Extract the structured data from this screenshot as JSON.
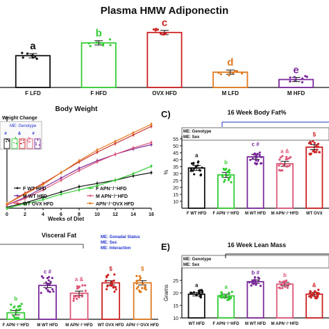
{
  "figure": {
    "title": "Plasma HMW Adiponectin"
  },
  "chart_data": [
    {
      "type": "bar",
      "panel": "",
      "title": "Plasma HMW Adiponectin",
      "categories": [
        "F LFD",
        "F HFD",
        "OVX HFD",
        "M LFD",
        "M HFD"
      ],
      "values": [
        0.52,
        0.73,
        0.9,
        0.25,
        0.13
      ],
      "letters": [
        "a",
        "b",
        "c",
        "d",
        "e"
      ],
      "colors": [
        "#111111",
        "#33cc33",
        "#cc2222",
        "#e07a1f",
        "#7a2a9a"
      ],
      "ylim": [
        0,
        1
      ]
    },
    {
      "type": "line",
      "panel": "",
      "title": "Body Weight",
      "inset_title": "Weight Change",
      "inset_label": "ME: Genotype",
      "inset_marks": [
        "#",
        "&",
        "#"
      ],
      "xlabel": "Weeks of Diet",
      "x_ticks": [
        "0",
        "2",
        "4",
        "6",
        "8",
        "10",
        "12",
        "14",
        "16"
      ],
      "series": [
        {
          "name": "F WT HFD",
          "color": "#111111",
          "values": [
            0.1,
            0.5,
            1,
            1.5,
            2,
            2.3,
            2.6,
            3,
            3.3
          ]
        },
        {
          "name": "F APN⁻/⁻HFD",
          "color": "#33cc33",
          "values": [
            0,
            0.4,
            0.8,
            1.3,
            1.7,
            2.1,
            2.6,
            3.2,
            3.9
          ]
        },
        {
          "name": "M WT HFD",
          "color": "#7a2a9a",
          "values": [
            0.3,
            1,
            1.9,
            2.8,
            3.7,
            4.4,
            5,
            5.5,
            5.9
          ]
        },
        {
          "name": "M APN⁻/⁻HFD",
          "color": "#dd5577",
          "values": [
            0.3,
            0.9,
            1.7,
            2.6,
            3.5,
            4.3,
            5,
            5.6,
            6.1
          ]
        },
        {
          "name": "WT OVX HFD",
          "color": "#cc3333",
          "values": [
            0.4,
            1.4,
            2.3,
            3.3,
            4.3,
            5.2,
            6,
            6.8,
            7.6
          ]
        },
        {
          "name": "APN⁻/⁻OVX HFD",
          "color": "#e07a1f",
          "values": [
            0.4,
            1.3,
            2.2,
            3.3,
            4.4,
            5.4,
            6.2,
            7,
            7.8
          ]
        }
      ],
      "ylim": [
        0,
        8.5
      ]
    },
    {
      "type": "bar",
      "panel": "C)",
      "title": "16 Week Body Fat%",
      "bracket_label": "ME: Genotype\nME: Sex",
      "ylabel": "%",
      "y_ticks": [
        "10",
        "15",
        "20",
        "25",
        "30",
        "35",
        "40",
        "45",
        "50",
        "55"
      ],
      "categories": [
        "F WT HFD",
        "F APN⁻/⁻HFD",
        "M WT HFD",
        "M APN⁻/⁻HFD",
        "WT OVX"
      ],
      "values": [
        34,
        29,
        42,
        37,
        49
      ],
      "letters": [
        "a",
        "b",
        "c #",
        "a &",
        "$"
      ],
      "colors": [
        "#111111",
        "#33cc33",
        "#7a2a9a",
        "#dd5577",
        "#cc2222"
      ],
      "ylim": [
        5,
        57
      ]
    },
    {
      "type": "bar",
      "panel": "",
      "title": "Visceral Fat",
      "bracket_label": "ME: Gonadal Status\nME: Sex\nME: Interaction",
      "categories": [
        "F APN⁻/⁻HFD",
        "M WT HFD",
        "M APN⁻/⁻HFD",
        "WT OVX HFD",
        "APN⁻/⁻OVX HFD"
      ],
      "values": [
        0.25,
        1.3,
        1,
        1.4,
        1.4
      ],
      "letters": [
        "b",
        "c #",
        "a &",
        "$",
        "$"
      ],
      "colors": [
        "#33cc33",
        "#7a2a9a",
        "#dd5577",
        "#cc2222",
        "#e07a1f"
      ],
      "ylim": [
        0,
        2.4
      ]
    },
    {
      "type": "bar",
      "panel": "E)",
      "title": "16 Week Lean Mass",
      "bracket_label": "ME: Genotype\nME: Sex",
      "ylabel": "Grams",
      "y_ticks": [
        "10",
        "15",
        "20",
        "25"
      ],
      "categories": [
        "WT HFD",
        "F APN⁻/⁻HFD",
        "M WT HFD",
        "M APN⁻/⁻HFD",
        ""
      ],
      "values": [
        19.5,
        18.8,
        24.5,
        23.5,
        19.5
      ],
      "letters": [
        "a",
        "a",
        "b #",
        "b",
        "&"
      ],
      "colors": [
        "#111111",
        "#33cc33",
        "#7a2a9a",
        "#dd5577",
        "#cc2222"
      ],
      "ylim": [
        10,
        30
      ]
    }
  ]
}
